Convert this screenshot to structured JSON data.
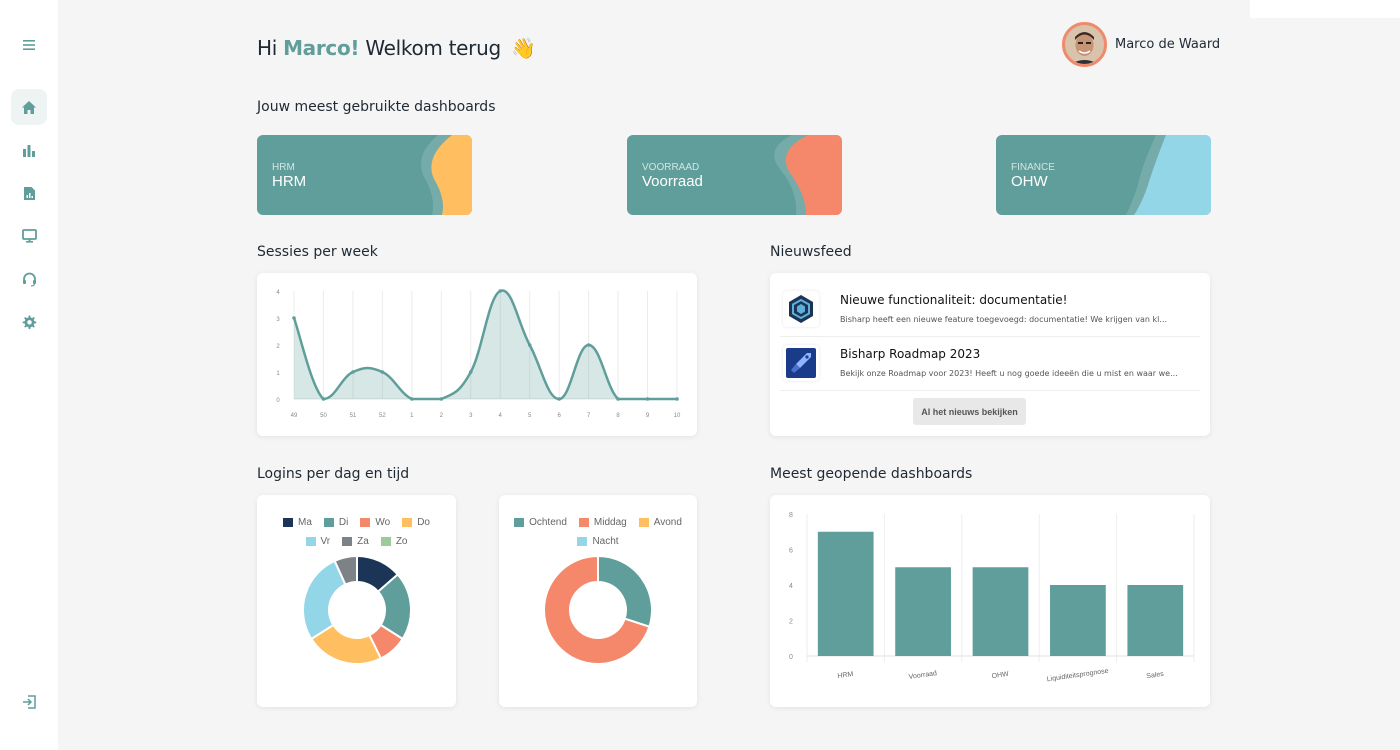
{
  "greeting": {
    "prefix": "Hi",
    "name": "Marco!",
    "suffix": "Welkom terug",
    "emoji": "👋"
  },
  "user": {
    "name": "Marco de Waard"
  },
  "sidebar": {
    "items": [
      {
        "icon": "menu-icon"
      },
      {
        "icon": "home-icon",
        "active": true
      },
      {
        "icon": "bar-chart-icon"
      },
      {
        "icon": "report-icon"
      },
      {
        "icon": "monitor-icon"
      },
      {
        "icon": "headset-icon"
      },
      {
        "icon": "gear-icon"
      },
      {
        "icon": "logout-icon"
      }
    ]
  },
  "sections": {
    "dashboards": "Jouw meest gebruikte dashboards",
    "sessions": "Sessies per week",
    "news": "Nieuwsfeed",
    "logins": "Logins per dag en tijd",
    "most_opened": "Meest geopende dashboards"
  },
  "dashboards": [
    {
      "category": "HRM",
      "name": "HRM",
      "accent": "#ffbe5f"
    },
    {
      "category": "VOORRAAD",
      "name": "Voorraad",
      "accent": "#f5886b"
    },
    {
      "category": "FINANCE",
      "name": "OHW",
      "accent": "#92d6e8"
    }
  ],
  "news": {
    "items": [
      {
        "title": "Nieuwe functionaliteit: documentatie!",
        "text": "Bisharp heeft een nieuwe feature toegevoegd: documentatie! We krijgen van kl...",
        "icon": "hexagon-icon"
      },
      {
        "title": "Bisharp Roadmap 2023",
        "text": "Bekijk onze Roadmap voor 2023! Heeft u nog goede ideeën die u mist en waar we...",
        "icon": "rocket-icon"
      }
    ],
    "button": "Al het nieuws bekijken"
  },
  "colors": {
    "teal": "#5f9e9a",
    "navy": "#1c3557",
    "salmon": "#f5886b",
    "yellow": "#ffbe5f",
    "lightblue": "#92d6e8",
    "gray": "#7d8287",
    "green": "#9ccb9a"
  },
  "chart_data": [
    {
      "type": "area",
      "categories": [
        "49",
        "50",
        "51",
        "52",
        "1",
        "2",
        "3",
        "4",
        "5",
        "6",
        "7",
        "8",
        "9",
        "10"
      ],
      "values": [
        3,
        0,
        1,
        1,
        0,
        0,
        1,
        4,
        2,
        0,
        2,
        0,
        0,
        0
      ],
      "ylim": [
        0,
        4
      ],
      "yticks": [
        "0",
        "1",
        "2",
        "3",
        "4"
      ],
      "grid": "vertical"
    },
    {
      "type": "pie",
      "donut": true,
      "labels": [
        "Ma",
        "Di",
        "Wo",
        "Do",
        "Vr",
        "Za",
        "Zo"
      ],
      "values": [
        14,
        21,
        9,
        24,
        28,
        7,
        0
      ],
      "colors": [
        "#1c3557",
        "#5f9e9a",
        "#f5886b",
        "#ffbe5f",
        "#92d6e8",
        "#7d8287",
        "#9ccb9a"
      ],
      "legend": "top"
    },
    {
      "type": "pie",
      "donut": true,
      "labels": [
        "Ochtend",
        "Middag",
        "Avond",
        "Nacht"
      ],
      "values": [
        30,
        70,
        0,
        0
      ],
      "colors": [
        "#5f9e9a",
        "#f5886b",
        "#ffbe5f",
        "#92d6e8"
      ],
      "legend": "top"
    },
    {
      "type": "bar",
      "categories": [
        "HRM",
        "Voorraad",
        "OHW",
        "Liquiditeitsprognose",
        "Sales"
      ],
      "values": [
        7,
        5,
        5,
        4,
        4
      ],
      "ylim": [
        0,
        8
      ],
      "yticks": [
        "0",
        "2",
        "4",
        "6",
        "8"
      ],
      "color": "#5f9e9a"
    }
  ]
}
